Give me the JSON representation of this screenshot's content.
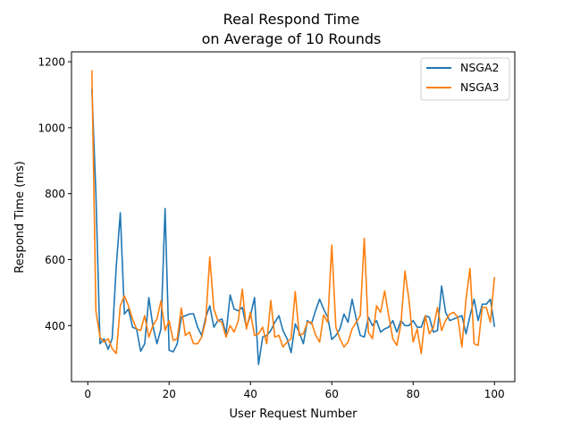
{
  "chart_data": {
    "type": "line",
    "title": [
      "Real Respond Time",
      "on Average of 10 Rounds"
    ],
    "xlabel": "User Request Number",
    "ylabel": "Respond Time (ms)",
    "xlim": [
      -4,
      105
    ],
    "ylim": [
      230,
      1230
    ],
    "xticks": [
      0,
      20,
      40,
      60,
      80,
      100
    ],
    "yticks": [
      400,
      600,
      800,
      1000,
      1200
    ],
    "grid": false,
    "legend": "top-right",
    "x": [
      1,
      2,
      3,
      4,
      5,
      6,
      7,
      8,
      9,
      10,
      11,
      12,
      13,
      14,
      15,
      16,
      17,
      18,
      19,
      20,
      21,
      22,
      23,
      24,
      25,
      26,
      27,
      28,
      29,
      30,
      31,
      32,
      33,
      34,
      35,
      36,
      37,
      38,
      39,
      40,
      41,
      42,
      43,
      44,
      45,
      46,
      47,
      48,
      49,
      50,
      51,
      52,
      53,
      54,
      55,
      56,
      57,
      58,
      59,
      60,
      61,
      62,
      63,
      64,
      65,
      66,
      67,
      68,
      69,
      70,
      71,
      72,
      73,
      74,
      75,
      76,
      77,
      78,
      79,
      80,
      81,
      82,
      83,
      84,
      85,
      86,
      87,
      88,
      89,
      90,
      91,
      92,
      93,
      94,
      95,
      96,
      97,
      98,
      99,
      100
    ],
    "series": [
      {
        "name": "NSGA2",
        "color": "#1f77b4",
        "values": [
          1115,
          800,
          345,
          360,
          328,
          360,
          580,
          742,
          435,
          450,
          395,
          390,
          322,
          345,
          485,
          400,
          345,
          390,
          755,
          325,
          320,
          345,
          425,
          430,
          435,
          436,
          395,
          370,
          425,
          460,
          395,
          415,
          420,
          375,
          493,
          450,
          445,
          455,
          395,
          430,
          485,
          282,
          365,
          370,
          385,
          410,
          430,
          385,
          360,
          318,
          405,
          380,
          345,
          415,
          405,
          445,
          480,
          450,
          425,
          358,
          370,
          390,
          435,
          410,
          480,
          420,
          370,
          365,
          425,
          400,
          415,
          380,
          390,
          395,
          415,
          380,
          415,
          400,
          400,
          415,
          395,
          395,
          430,
          425,
          380,
          385,
          520,
          440,
          415,
          420,
          425,
          430,
          375,
          430,
          480,
          415,
          465,
          465,
          480,
          398
        ]
      },
      {
        "name": "NSGA3",
        "color": "#ff7f0e",
        "values": [
          1172,
          445,
          365,
          350,
          360,
          330,
          315,
          460,
          490,
          460,
          420,
          390,
          385,
          430,
          365,
          400,
          420,
          475,
          385,
          415,
          355,
          360,
          453,
          370,
          380,
          345,
          345,
          365,
          415,
          608,
          450,
          415,
          410,
          365,
          400,
          380,
          415,
          510,
          390,
          440,
          370,
          375,
          395,
          345,
          476,
          365,
          370,
          335,
          350,
          360,
          503,
          370,
          375,
          410,
          410,
          372,
          350,
          432,
          410,
          644,
          395,
          360,
          335,
          350,
          390,
          410,
          430,
          665,
          380,
          360,
          460,
          440,
          505,
          430,
          360,
          340,
          405,
          565,
          475,
          350,
          390,
          315,
          430,
          375,
          395,
          455,
          385,
          415,
          435,
          440,
          425,
          335,
          480,
          573,
          345,
          340,
          455,
          455,
          410,
          545
        ]
      }
    ]
  }
}
